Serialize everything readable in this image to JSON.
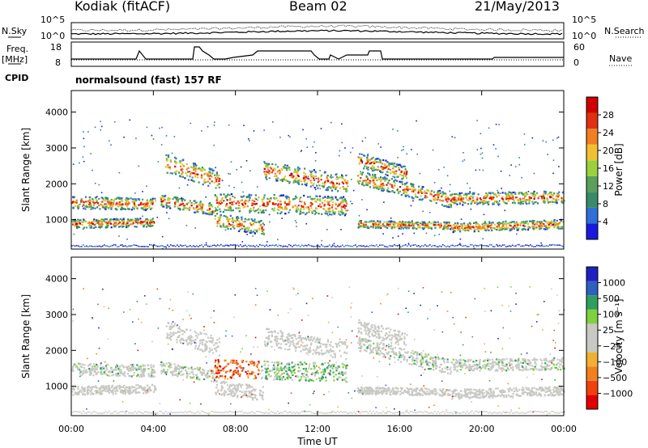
{
  "header": {
    "station": "Kodiak (fitACF)",
    "beam": "Beam 02",
    "date": "21/May/2013"
  },
  "side_labels": {
    "nsky": "N.Sky",
    "nsearch": "N.Search",
    "freq": "Freq.",
    "mhz": "[MHz]",
    "nave": "Nave",
    "cpid": "CPID",
    "cpid_text": "normalsound (fast) 157 RF",
    "noise_ticks_top": "10^5",
    "noise_ticks_bottom": "10^0",
    "freq_ticks": [
      "18",
      "8"
    ],
    "nave_ticks": [
      "60",
      "0"
    ]
  },
  "colors": {
    "power": [
      "#1a1adc",
      "#2f6fd8",
      "#3a8a6a",
      "#5aa05a",
      "#9bd23c",
      "#f0c030",
      "#f08020",
      "#e03010",
      "#d00000"
    ],
    "velocity": [
      "#e00000",
      "#f04010",
      "#f08020",
      "#f0b030",
      "#c8c8c4",
      "#c8c8c4",
      "#80d040",
      "#2f9f5f",
      "#2f5fbf",
      "#2020c0"
    ],
    "ground_scatter": "#c8c8c4"
  },
  "chart_data": [
    {
      "type": "heatmap",
      "panel": "power",
      "xlabel": "",
      "ylabel": "Slant Range [km]",
      "x_ticks": [
        "00:00",
        "04:00",
        "08:00",
        "12:00",
        "16:00",
        "20:00",
        "00:00"
      ],
      "y_ticks": [
        1000,
        2000,
        3000,
        4000
      ],
      "ylim": [
        180,
        4600
      ],
      "colorbar": {
        "label": "Power [dB]",
        "ticks": [
          4,
          8,
          12,
          16,
          20,
          24,
          28
        ],
        "range": [
          0,
          32
        ]
      },
      "grid": false
    },
    {
      "type": "heatmap",
      "panel": "velocity",
      "xlabel": "Time UT",
      "ylabel": "Slant Range [km]",
      "x_ticks": [
        "00:00",
        "04:00",
        "08:00",
        "12:00",
        "16:00",
        "20:00",
        "00:00"
      ],
      "y_ticks": [
        1000,
        2000,
        3000,
        4000
      ],
      "ylim": [
        180,
        4600
      ],
      "colorbar": {
        "label": "Velocity [m s⁻¹]",
        "ticks": [
          "1000",
          "500",
          "100",
          "25",
          "−25",
          "−100",
          "−500",
          "−1000"
        ]
      },
      "grid": false
    }
  ],
  "axis": {
    "xlabel": "Time UT",
    "power_label": "Power [dB]",
    "velocity_label": "Velocity [m s⁻¹]"
  }
}
